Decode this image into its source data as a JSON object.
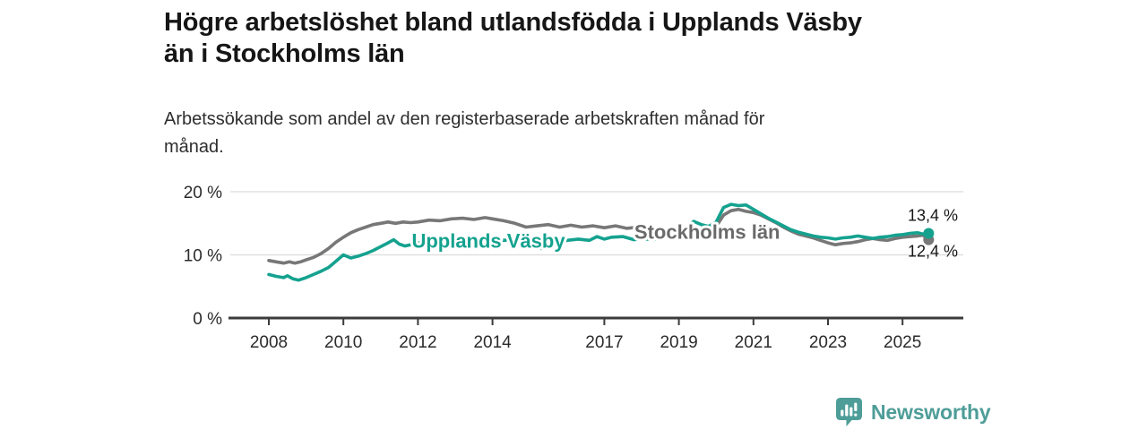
{
  "header": {
    "title": "Högre arbetslöshet bland utlandsfödda i Upplands Väsby än i Stockholms län",
    "title_lines": [
      "Högre arbetslöshet bland utlandsfödda i Upplands Väsby",
      "än i Stockholms län"
    ],
    "subtitle": "Arbetssökande som andel av den registerbaserade arbetskraften månad för månad.",
    "subtitle_lines": [
      "Arbetssökande som andel av den registerbaserade arbetskraften månad för",
      "månad."
    ]
  },
  "footer": {
    "brand": "Newsworthy",
    "brand_color": "#4E9D98",
    "logo_icon": "bar-chart-speech-bubble-icon"
  },
  "chart_data": {
    "type": "line",
    "title": "Högre arbetslöshet bland utlandsfödda i Upplands Väsby än i Stockholms län",
    "subtitle": "Arbetssökande som andel av den registerbaserade arbetskraften månad för månad.",
    "xlabel": "",
    "ylabel": "",
    "xlim": [
      2007.7,
      2026.3
    ],
    "ylim": [
      0,
      20
    ],
    "grid": "horizontal",
    "legend_position": "inline-on-lines",
    "x_ticks": [
      2008,
      2010,
      2012,
      2014,
      2017,
      2019,
      2021,
      2023,
      2025
    ],
    "y_ticks": [
      {
        "value": 0,
        "label": "0 %"
      },
      {
        "value": 10,
        "label": "10 %"
      },
      {
        "value": 20,
        "label": "20 %"
      }
    ],
    "colors": {
      "grid": "#dcdcdc",
      "axis": "#3b3b3b",
      "tick_text": "#2b2b2b",
      "end_label_text": "#161616"
    },
    "inline_labels": [
      {
        "text": "Upplands Väsby",
        "x": 2013.89,
        "value": 12.3,
        "color": "#14A28F"
      },
      {
        "text": "Stockholms län",
        "x": 2019.76,
        "value": 13.7,
        "color": "#6a6a6a"
      }
    ],
    "series": [
      {
        "name": "Stockholms län",
        "color": "#777777",
        "end_label": "12,4 %",
        "end_value": 12.4,
        "end_label_side": "below",
        "points": [
          [
            2008.0,
            9.1
          ],
          [
            2008.2,
            8.9
          ],
          [
            2008.4,
            8.7
          ],
          [
            2008.55,
            8.9
          ],
          [
            2008.7,
            8.7
          ],
          [
            2008.85,
            8.9
          ],
          [
            2009.0,
            9.2
          ],
          [
            2009.2,
            9.6
          ],
          [
            2009.4,
            10.2
          ],
          [
            2009.6,
            11.0
          ],
          [
            2009.8,
            12.0
          ],
          [
            2010.0,
            12.8
          ],
          [
            2010.2,
            13.5
          ],
          [
            2010.4,
            14.0
          ],
          [
            2010.6,
            14.4
          ],
          [
            2010.8,
            14.8
          ],
          [
            2011.0,
            15.0
          ],
          [
            2011.2,
            15.2
          ],
          [
            2011.4,
            15.0
          ],
          [
            2011.6,
            15.2
          ],
          [
            2011.8,
            15.1
          ],
          [
            2012.0,
            15.2
          ],
          [
            2012.3,
            15.5
          ],
          [
            2012.6,
            15.4
          ],
          [
            2012.9,
            15.7
          ],
          [
            2013.2,
            15.8
          ],
          [
            2013.5,
            15.6
          ],
          [
            2013.8,
            15.9
          ],
          [
            2014.0,
            15.7
          ],
          [
            2014.3,
            15.4
          ],
          [
            2014.6,
            15.0
          ],
          [
            2014.9,
            14.4
          ],
          [
            2015.2,
            14.6
          ],
          [
            2015.5,
            14.8
          ],
          [
            2015.8,
            14.4
          ],
          [
            2016.1,
            14.7
          ],
          [
            2016.4,
            14.4
          ],
          [
            2016.7,
            14.6
          ],
          [
            2017.0,
            14.3
          ],
          [
            2017.3,
            14.6
          ],
          [
            2017.6,
            14.2
          ],
          [
            2017.9,
            14.4
          ],
          [
            2018.2,
            14.1
          ],
          [
            2018.5,
            13.9
          ],
          [
            2018.8,
            14.1
          ],
          [
            2019.1,
            13.9
          ],
          [
            2019.4,
            14.1
          ],
          [
            2019.7,
            13.9
          ],
          [
            2020.0,
            14.5
          ],
          [
            2020.2,
            16.3
          ],
          [
            2020.4,
            17.0
          ],
          [
            2020.6,
            17.2
          ],
          [
            2020.8,
            16.9
          ],
          [
            2021.0,
            16.7
          ],
          [
            2021.2,
            16.3
          ],
          [
            2021.4,
            15.7
          ],
          [
            2021.6,
            15.1
          ],
          [
            2021.8,
            14.4
          ],
          [
            2022.0,
            13.8
          ],
          [
            2022.2,
            13.3
          ],
          [
            2022.4,
            13.0
          ],
          [
            2022.6,
            12.7
          ],
          [
            2022.8,
            12.3
          ],
          [
            2023.0,
            11.9
          ],
          [
            2023.2,
            11.6
          ],
          [
            2023.4,
            11.8
          ],
          [
            2023.6,
            11.9
          ],
          [
            2023.8,
            12.1
          ],
          [
            2024.0,
            12.4
          ],
          [
            2024.2,
            12.6
          ],
          [
            2024.4,
            12.4
          ],
          [
            2024.6,
            12.3
          ],
          [
            2024.8,
            12.6
          ],
          [
            2025.0,
            12.8
          ],
          [
            2025.2,
            12.9
          ],
          [
            2025.4,
            13.0
          ],
          [
            2025.55,
            13.1
          ],
          [
            2025.7,
            12.4
          ]
        ]
      },
      {
        "name": "Upplands Väsby",
        "color": "#14A28F",
        "end_label": "13,4 %",
        "end_value": 13.4,
        "end_label_side": "above",
        "points": [
          [
            2008.0,
            6.9
          ],
          [
            2008.2,
            6.6
          ],
          [
            2008.4,
            6.4
          ],
          [
            2008.5,
            6.7
          ],
          [
            2008.65,
            6.2
          ],
          [
            2008.8,
            6.0
          ],
          [
            2009.0,
            6.4
          ],
          [
            2009.2,
            6.9
          ],
          [
            2009.4,
            7.4
          ],
          [
            2009.6,
            8.0
          ],
          [
            2009.8,
            9.0
          ],
          [
            2010.0,
            10.0
          ],
          [
            2010.2,
            9.5
          ],
          [
            2010.4,
            9.8
          ],
          [
            2010.6,
            10.2
          ],
          [
            2010.8,
            10.7
          ],
          [
            2011.0,
            11.3
          ],
          [
            2011.2,
            11.9
          ],
          [
            2011.35,
            12.4
          ],
          [
            2011.5,
            11.7
          ],
          [
            2011.65,
            11.4
          ],
          [
            2011.8,
            11.6
          ],
          [
            2012.0,
            11.9
          ],
          [
            2012.2,
            12.2
          ],
          [
            2012.35,
            12.4
          ],
          [
            2012.5,
            11.8
          ],
          [
            2012.7,
            12.0
          ],
          [
            2012.9,
            12.1
          ],
          [
            2013.1,
            12.3
          ],
          [
            2013.4,
            12.5
          ],
          [
            2013.7,
            12.4
          ],
          [
            2014.0,
            12.6
          ],
          [
            2014.3,
            12.3
          ],
          [
            2014.6,
            12.5
          ],
          [
            2014.9,
            12.1
          ],
          [
            2015.1,
            11.6
          ],
          [
            2015.3,
            11.0
          ],
          [
            2015.5,
            11.7
          ],
          [
            2015.7,
            12.0
          ],
          [
            2016.0,
            12.3
          ],
          [
            2016.3,
            12.5
          ],
          [
            2016.6,
            12.3
          ],
          [
            2016.8,
            12.9
          ],
          [
            2017.0,
            12.5
          ],
          [
            2017.2,
            12.8
          ],
          [
            2017.5,
            12.9
          ],
          [
            2017.8,
            12.4
          ],
          [
            2018.0,
            12.6
          ],
          [
            2018.3,
            12.4
          ],
          [
            2018.6,
            12.8
          ],
          [
            2018.9,
            13.1
          ],
          [
            2019.2,
            14.3
          ],
          [
            2019.4,
            15.3
          ],
          [
            2019.6,
            14.8
          ],
          [
            2019.8,
            14.5
          ],
          [
            2020.0,
            15.2
          ],
          [
            2020.2,
            17.5
          ],
          [
            2020.4,
            18.0
          ],
          [
            2020.6,
            17.8
          ],
          [
            2020.8,
            17.9
          ],
          [
            2021.0,
            17.2
          ],
          [
            2021.2,
            16.5
          ],
          [
            2021.4,
            15.8
          ],
          [
            2021.6,
            15.2
          ],
          [
            2021.8,
            14.6
          ],
          [
            2022.0,
            14.0
          ],
          [
            2022.2,
            13.6
          ],
          [
            2022.4,
            13.3
          ],
          [
            2022.6,
            13.0
          ],
          [
            2022.8,
            12.8
          ],
          [
            2023.0,
            12.7
          ],
          [
            2023.2,
            12.5
          ],
          [
            2023.4,
            12.7
          ],
          [
            2023.6,
            12.8
          ],
          [
            2023.8,
            13.0
          ],
          [
            2024.0,
            12.8
          ],
          [
            2024.2,
            12.6
          ],
          [
            2024.4,
            12.8
          ],
          [
            2024.6,
            12.9
          ],
          [
            2024.8,
            13.1
          ],
          [
            2025.0,
            13.2
          ],
          [
            2025.2,
            13.4
          ],
          [
            2025.4,
            13.5
          ],
          [
            2025.55,
            13.3
          ],
          [
            2025.7,
            13.4
          ]
        ]
      }
    ]
  }
}
